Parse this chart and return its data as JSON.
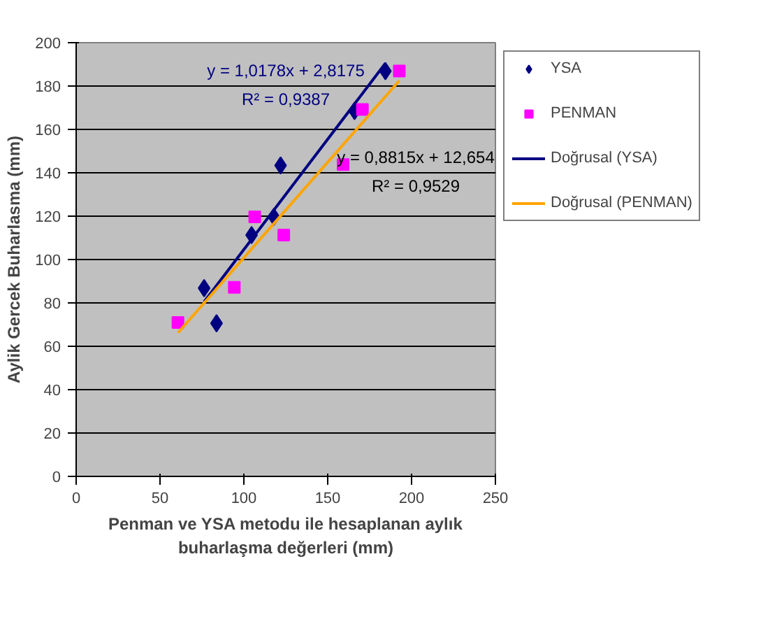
{
  "chart_data": {
    "type": "scatter",
    "xlabel": "Penman ve YSA metodu ile hesaplanan aylık buharlaşma değerleri (mm)",
    "ylabel": "Aylik Gercek Buharlasma (mm)",
    "xlim": [
      0,
      250
    ],
    "xticks": [
      0,
      50,
      100,
      150,
      200,
      250
    ],
    "ylim": [
      0,
      200
    ],
    "yticks": [
      0,
      20,
      40,
      60,
      80,
      100,
      120,
      140,
      160,
      180,
      200
    ],
    "grid": "y",
    "legend": "right",
    "series": [
      {
        "name": "YSA",
        "marker": "diamond",
        "color": "#000080",
        "x": [
          76.3,
          83.7,
          104.6,
          117.9,
          121.9,
          166,
          184.4
        ],
        "values": [
          86.8,
          70.6,
          111.3,
          119.7,
          143.4,
          168.5,
          186.9
        ]
      },
      {
        "name": "PENMAN",
        "marker": "square",
        "color": "#ff00ff",
        "x": [
          60.7,
          94.3,
          106.5,
          123.8,
          159.2,
          170.7,
          192.7
        ],
        "values": [
          71,
          87.2,
          119.7,
          111.3,
          143.8,
          169.2,
          186.9
        ]
      },
      {
        "name": "Doğrusal (YSA)",
        "type": "line",
        "color": "#000080",
        "x": [
          76.3,
          184.4
        ],
        "values": [
          80.5,
          190.5
        ]
      },
      {
        "name": "Doğrusal (PENMAN)",
        "type": "line",
        "color": "#ffa500",
        "x": [
          60.7,
          192.7
        ],
        "values": [
          66.2,
          182.5
        ]
      }
    ],
    "annotations": [
      "y = 1,0178x + 2,8175",
      "R² = 0,9387",
      "y = 0,8815x + 12,654",
      "R² = 0,9529"
    ]
  }
}
